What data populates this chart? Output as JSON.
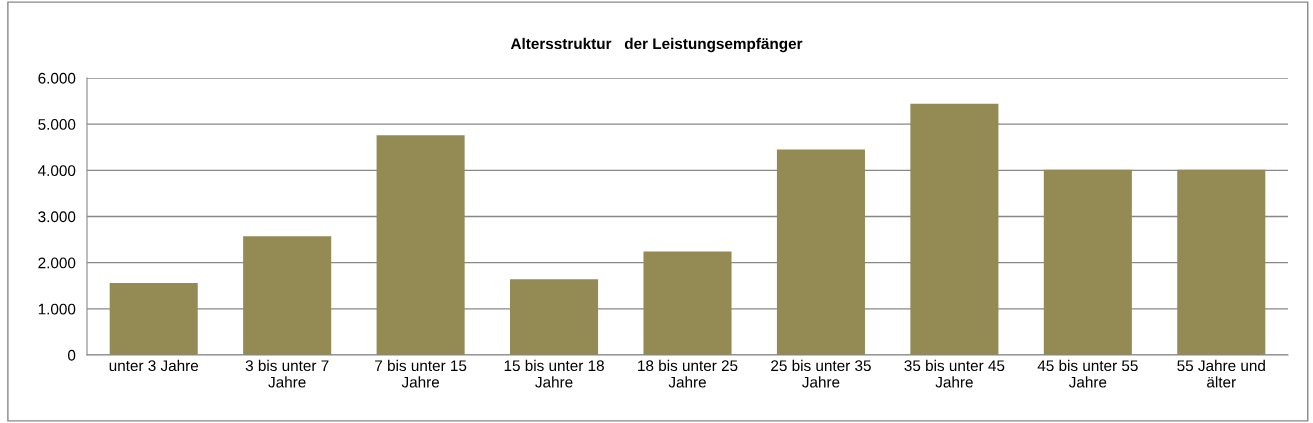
{
  "chart_data": {
    "type": "bar",
    "title": "Altersstruktur   der Leistungsempfänger",
    "categories": [
      "unter 3 Jahre",
      "3 bis unter 7\nJahre",
      "7 bis unter 15\nJahre",
      "15 bis unter 18\nJahre",
      "18 bis unter 25\nJahre",
      "25 bis unter 35\nJahre",
      "35 bis unter 45\nJahre",
      "45 bis unter 55\nJahre",
      "55 Jahre und\nälter"
    ],
    "values": [
      1560,
      2570,
      4760,
      1640,
      2240,
      4450,
      5440,
      4010,
      4010
    ],
    "color": "#948a54",
    "ylim": [
      0,
      6000
    ],
    "yticks": [
      {
        "value": 0,
        "label": "0"
      },
      {
        "value": 1000,
        "label": "1.000"
      },
      {
        "value": 2000,
        "label": "2.000"
      },
      {
        "value": 3000,
        "label": "3.000"
      },
      {
        "value": 4000,
        "label": "4.000"
      },
      {
        "value": 5000,
        "label": "5.000"
      },
      {
        "value": 6000,
        "label": "6.000"
      }
    ],
    "grid": "y",
    "legend": false
  }
}
